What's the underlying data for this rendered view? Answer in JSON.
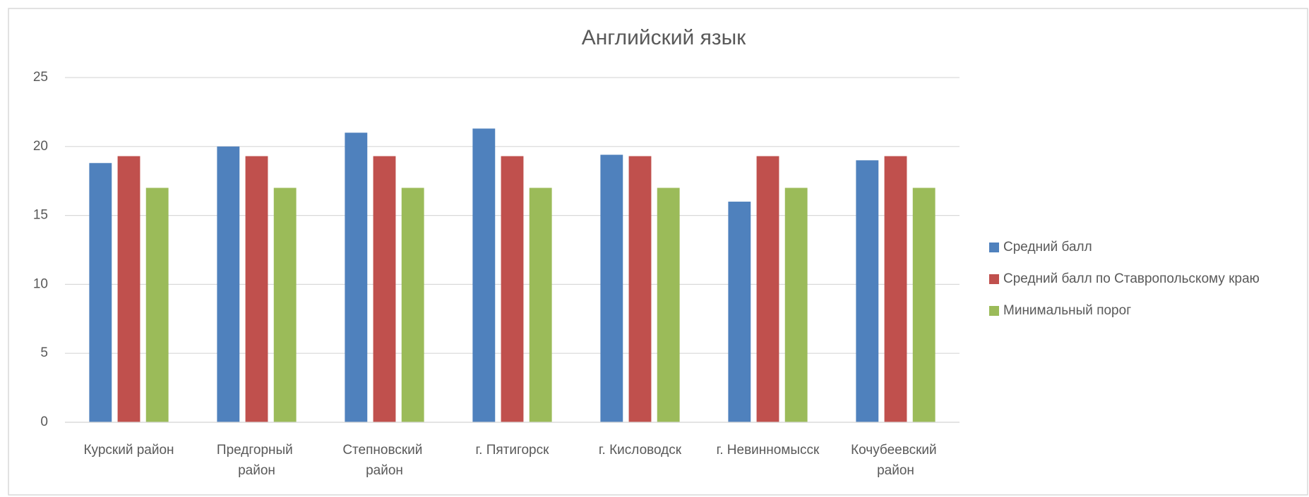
{
  "chart_data": {
    "type": "bar",
    "title": "Английский язык",
    "categories": [
      "Курский район",
      "Предгорный район",
      "Степновский район",
      "г. Пятигорск",
      "г. Кисловодск",
      "г. Невинномысск",
      "Кочубеевский район"
    ],
    "series": [
      {
        "name": "Средний балл",
        "color": "#4f81bd",
        "values": [
          18.8,
          20,
          21,
          21.3,
          19.4,
          16,
          19
        ]
      },
      {
        "name": "Средний балл по Ставропольскому краю",
        "color": "#c0504d",
        "values": [
          19.3,
          19.3,
          19.3,
          19.3,
          19.3,
          19.3,
          19.3
        ]
      },
      {
        "name": "Минимальный порог",
        "color": "#9bbb59",
        "values": [
          17,
          17,
          17,
          17,
          17,
          17,
          17
        ]
      }
    ],
    "ylim": [
      0,
      25
    ],
    "yticks": [
      0,
      5,
      10,
      15,
      20,
      25
    ],
    "grid": true,
    "legend": "right"
  }
}
